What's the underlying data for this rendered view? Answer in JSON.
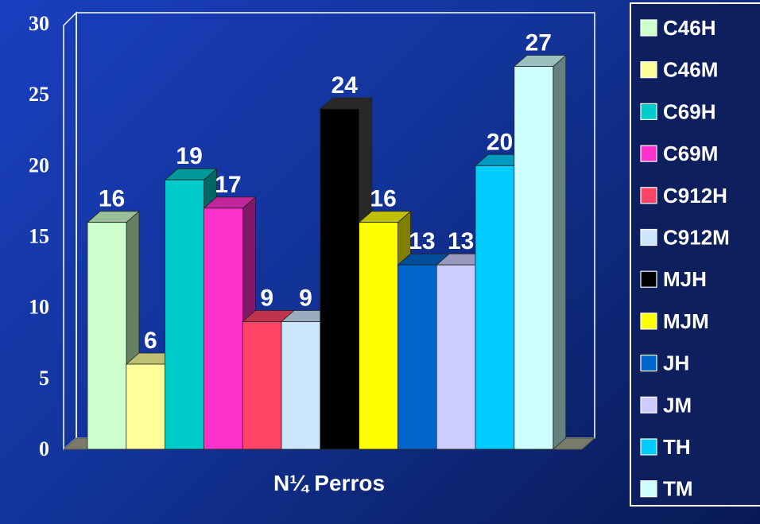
{
  "chart_data": {
    "type": "bar",
    "categories": [
      "C46H",
      "C46M",
      "C69H",
      "C69M",
      "C912H",
      "C912M",
      "MJH",
      "MJM",
      "JH",
      "JM",
      "TH",
      "TM"
    ],
    "values": [
      16,
      6,
      19,
      17,
      9,
      9,
      24,
      16,
      13,
      13,
      20,
      27
    ],
    "colors": [
      "#ccffcc",
      "#ffff99",
      "#00cccc",
      "#ff33cc",
      "#ff4466",
      "#cce6ff",
      "#000000",
      "#ffff00",
      "#0066cc",
      "#ccccff",
      "#00ccff",
      "#ccffff"
    ],
    "y_ticks": [
      "0",
      "5",
      "10",
      "15",
      "20",
      "25",
      "30"
    ],
    "ylim": [
      0,
      30
    ],
    "xlabel": "N¼ Perros",
    "ylabel": "",
    "title": "",
    "data_labels": true,
    "legend_position": "right",
    "grid": false,
    "style": "3d-bar"
  }
}
